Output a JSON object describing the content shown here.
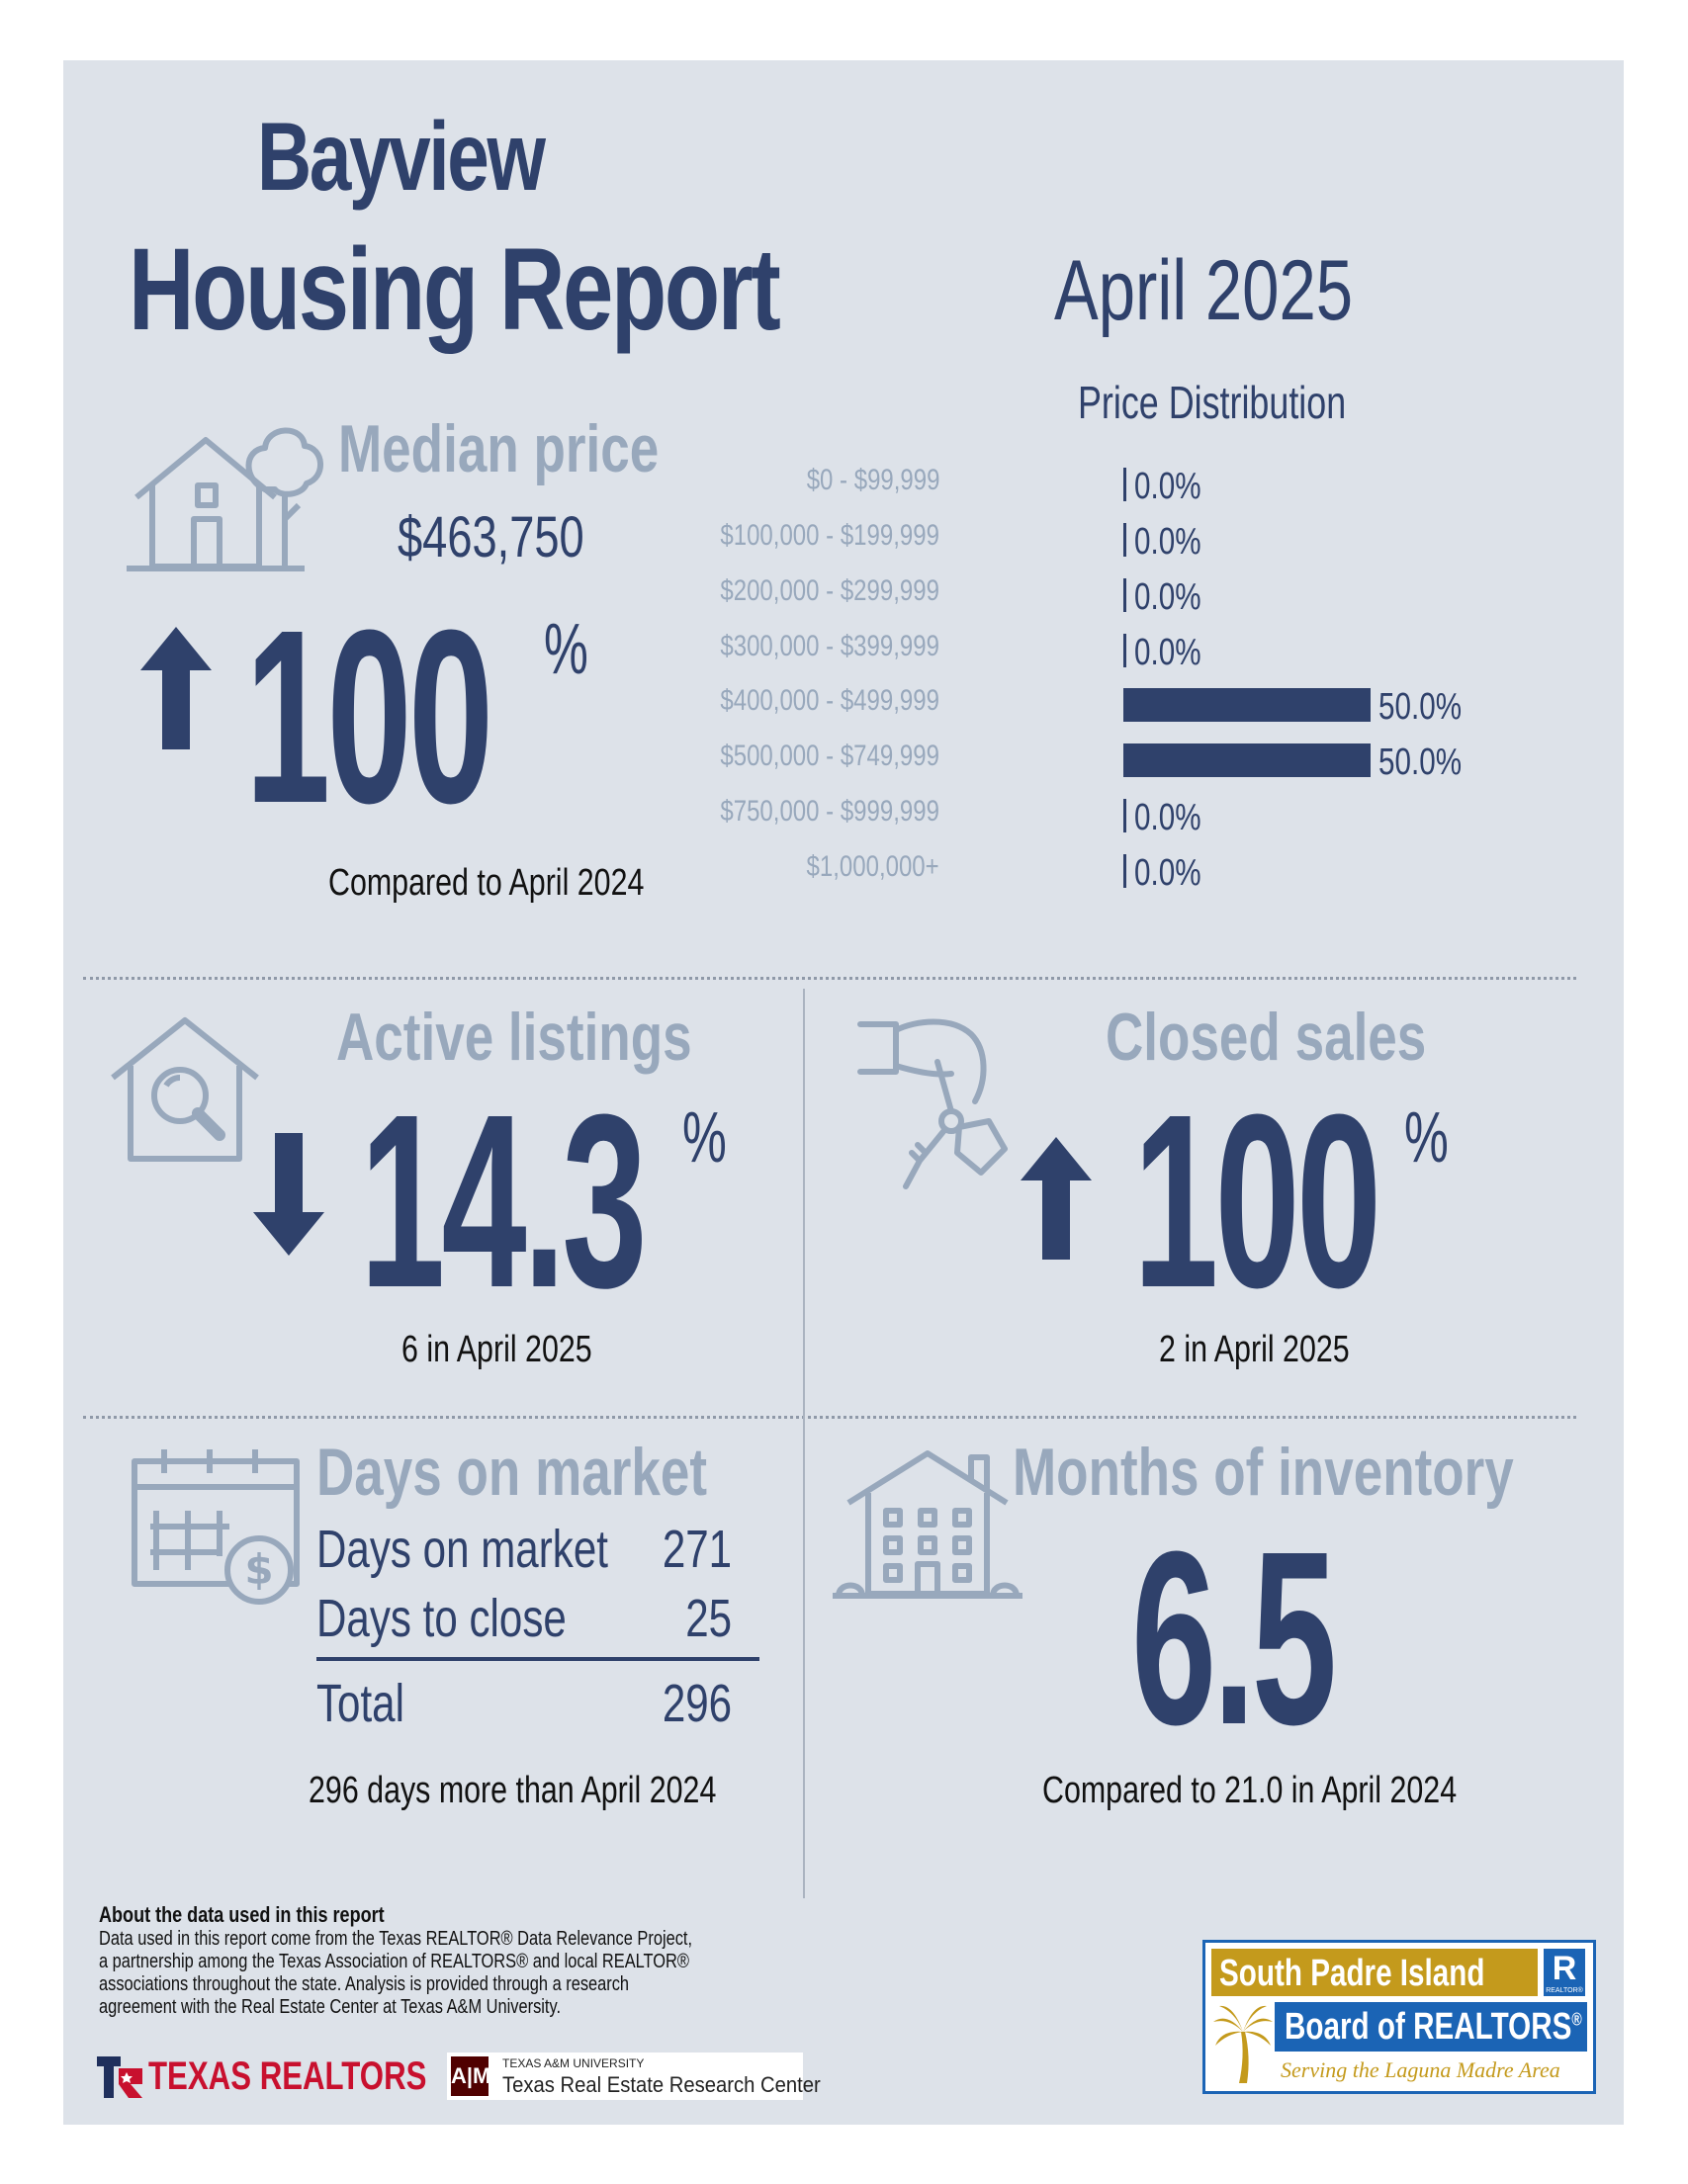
{
  "header": {
    "title_line1": "Bayview",
    "title_line2": "Housing Report",
    "month": "April 2025"
  },
  "median_price": {
    "label": "Median price",
    "value": "$463,750",
    "change": "100",
    "percent_sign": "%",
    "direction": "up",
    "caption": "Compared to April 2024"
  },
  "price_distribution": {
    "title": "Price Distribution",
    "rows": [
      {
        "label": "$0 - $99,999",
        "value": "0.0%",
        "pct": 0
      },
      {
        "label": "$100,000 - $199,999",
        "value": "0.0%",
        "pct": 0
      },
      {
        "label": "$200,000 - $299,999",
        "value": "0.0%",
        "pct": 0
      },
      {
        "label": "$300,000 - $399,999",
        "value": "0.0%",
        "pct": 0
      },
      {
        "label": "$400,000 - $499,999",
        "value": "50.0%",
        "pct": 50
      },
      {
        "label": "$500,000 - $749,999",
        "value": "50.0%",
        "pct": 50
      },
      {
        "label": "$750,000 - $999,999",
        "value": "0.0%",
        "pct": 0
      },
      {
        "label": "$1,000,000+",
        "value": "0.0%",
        "pct": 0
      }
    ]
  },
  "active_listings": {
    "label": "Active listings",
    "change": "14.3",
    "percent_sign": "%",
    "direction": "down",
    "caption": "6 in April 2025"
  },
  "closed_sales": {
    "label": "Closed sales",
    "change": "100",
    "percent_sign": "%",
    "direction": "up",
    "caption": "2 in April 2025"
  },
  "days_on_market": {
    "label": "Days on market",
    "rows": [
      {
        "label": "Days on market",
        "value": "271"
      },
      {
        "label": "Days to close",
        "value": "25"
      }
    ],
    "total_label": "Total",
    "total_value": "296",
    "caption": "296 days more than April 2024"
  },
  "months_inventory": {
    "label": "Months of inventory",
    "value": "6.5",
    "caption": "Compared to 21.0 in April 2024"
  },
  "footer": {
    "heading": "About the data used in this report",
    "text": "Data used in this report come from the Texas REALTOR® Data Relevance Project, a partnership among the Texas Association of REALTORS® and local REALTOR® associations throughout the state. Analysis is provided through a research agreement with the Real Estate Center at Texas A&M University.",
    "texas_realtors": "TEXAS REALTORS",
    "tamu_small": "TEXAS A&M UNIVERSITY",
    "tamu_center": "Texas Real Estate Research Center"
  },
  "board_logo": {
    "line1": "South Padre Island",
    "line2": "Board of REALTORS",
    "registered": "®",
    "tagline": "Serving the Laguna Madre Area",
    "realtor_mark": "REALTOR®"
  },
  "colors": {
    "navy": "#2f416b",
    "grey_blue": "#98a8bc",
    "panel_bg": "#dde2e9",
    "gold": "#c49a1c",
    "logo_blue": "#1b64b5",
    "texas_red": "#c8102e"
  }
}
